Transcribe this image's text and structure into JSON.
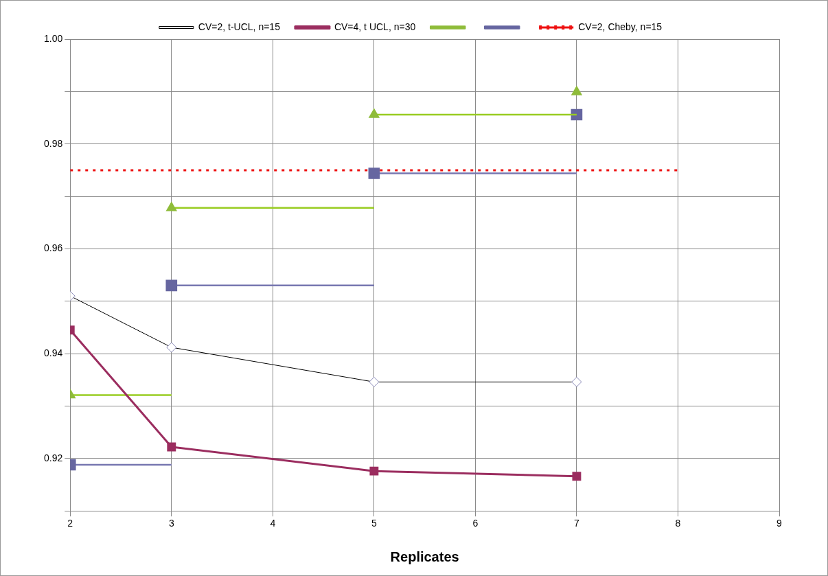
{
  "chart_data": {
    "type": "line",
    "xlabel": "Replicates",
    "xlim": [
      2,
      9
    ],
    "xticks": [
      2,
      3,
      4,
      5,
      6,
      7,
      8,
      9
    ],
    "ylim": [
      0.91,
      1.0
    ],
    "yticks": [
      {
        "value": 0.91,
        "label": null
      },
      0.92,
      {
        "value": 0.93,
        "label": null
      },
      0.94,
      {
        "value": 0.95,
        "label": null
      },
      0.96,
      {
        "value": 0.97,
        "label": null
      },
      0.98,
      {
        "value": 0.99,
        "label": null
      },
      {
        "value": 1.0,
        "label": "1.00"
      }
    ],
    "grid": true,
    "legend": "top",
    "series": [
      {
        "name": "CV=2, t-UCL, n=15",
        "marker": "diamond",
        "color": "#000000",
        "x": [
          2,
          3,
          5,
          7
        ],
        "values": [
          0.951,
          0.9412,
          0.9346,
          0.9346
        ]
      },
      {
        "name": "CV=4, t UCL, n=30",
        "marker": "square",
        "color": "#9b2d5f",
        "x": [
          2,
          3,
          5,
          7
        ],
        "values": [
          0.9445,
          0.9222,
          0.9176,
          0.9166
        ]
      },
      {
        "type": "scatter",
        "marker": "triangle",
        "color": "#8fbc3a",
        "x": [
          2,
          3,
          5,
          7
        ],
        "values": [
          0.9321,
          0.9678,
          0.9856,
          0.9899
        ]
      },
      {
        "marker": "none",
        "color": "#99cc22",
        "x": [
          2,
          3
        ],
        "values": [
          0.9321,
          0.9321
        ]
      },
      {
        "marker": "none",
        "color": "#99cc22",
        "x": [
          3,
          5
        ],
        "values": [
          0.9678,
          0.9678
        ]
      },
      {
        "marker": "none",
        "color": "#99cc22",
        "x": [
          5,
          7
        ],
        "values": [
          0.9856,
          0.9856
        ]
      },
      {
        "type": "scatter",
        "marker": "square",
        "color": "#6666a0",
        "x": [
          2,
          3,
          5,
          7
        ],
        "values": [
          0.9188,
          0.953,
          0.9744,
          0.9856
        ]
      },
      {
        "marker": "none",
        "color": "#7777b0",
        "x": [
          2,
          3
        ],
        "values": [
          0.9188,
          0.9188
        ]
      },
      {
        "marker": "none",
        "color": "#7777b0",
        "x": [
          3,
          5
        ],
        "values": [
          0.953,
          0.953
        ]
      },
      {
        "marker": "none",
        "color": "#7777b0",
        "x": [
          5,
          7
        ],
        "values": [
          0.9744,
          0.9744
        ]
      },
      {
        "name": "CV=2, Cheby, n=15",
        "marker": "none",
        "line_style": "dotted",
        "color": "#ee1111",
        "x": [
          2,
          8
        ],
        "values": [
          0.975,
          0.975
        ]
      }
    ]
  }
}
